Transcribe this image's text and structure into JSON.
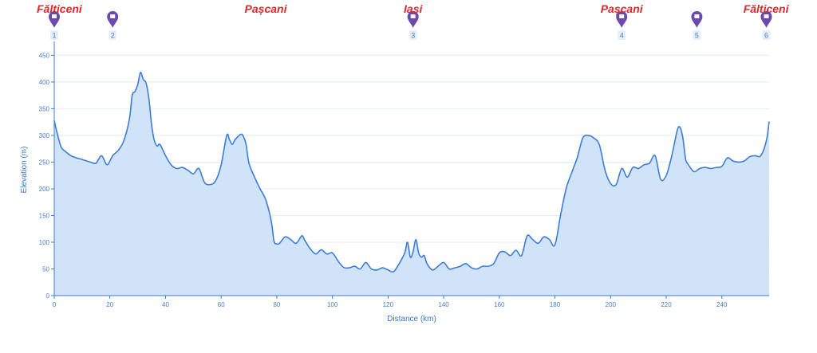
{
  "chart_data": {
    "type": "area",
    "title": "",
    "xlabel": "Distance (km)",
    "ylabel": "Elevation (m)",
    "xlim": [
      0,
      257
    ],
    "ylim": [
      0,
      470
    ],
    "x_ticks": [
      0,
      20,
      40,
      60,
      80,
      100,
      120,
      140,
      160,
      180,
      200,
      220,
      240
    ],
    "y_ticks": [
      0,
      50,
      100,
      150,
      200,
      250,
      300,
      350,
      400,
      450
    ],
    "grid": true,
    "colors": {
      "line": "#3b7dd8",
      "fill": "#cfe1f6",
      "grid": "#e3ebf5",
      "axis": "#3b7dd8",
      "marker": "#6a4ab0",
      "place": "#e0252b"
    },
    "series": [
      {
        "x": [
          0,
          1,
          2.5,
          4,
          6,
          8,
          10,
          13,
          15,
          17,
          19,
          21,
          23,
          25,
          27,
          28,
          29,
          30,
          31,
          32,
          33,
          34,
          35,
          36,
          37,
          38,
          40,
          42,
          44,
          46,
          48,
          50,
          52,
          54,
          56,
          58,
          60,
          62,
          63,
          64,
          65,
          67,
          68,
          69,
          70,
          72,
          74,
          76,
          78,
          79,
          80,
          81,
          83,
          85,
          87,
          89,
          90,
          92,
          94,
          96,
          98,
          100,
          102,
          104,
          106,
          108,
          110,
          112,
          114,
          116,
          118,
          120,
          122,
          124,
          126,
          127,
          128,
          129,
          130,
          131,
          132,
          133,
          134,
          136,
          138,
          140,
          142,
          144,
          146,
          148,
          150,
          152,
          154,
          156,
          158,
          160,
          162,
          164,
          166,
          168,
          170,
          172,
          174,
          176,
          178,
          180,
          182,
          184,
          186,
          188,
          190,
          192,
          194,
          196,
          198,
          200,
          202,
          204,
          206,
          208,
          210,
          212,
          214,
          216,
          218,
          220,
          222,
          224,
          225,
          226,
          227,
          228,
          230,
          232,
          234,
          236,
          238,
          240,
          242,
          244,
          246,
          248,
          250,
          252,
          254,
          256,
          257
        ],
        "values": [
          328,
          305,
          278,
          270,
          262,
          258,
          255,
          250,
          248,
          262,
          245,
          262,
          272,
          290,
          330,
          375,
          382,
          395,
          418,
          405,
          398,
          370,
          320,
          290,
          280,
          283,
          262,
          245,
          238,
          240,
          235,
          228,
          238,
          212,
          208,
          215,
          245,
          300,
          292,
          283,
          292,
          302,
          298,
          282,
          248,
          222,
          200,
          180,
          140,
          102,
          97,
          98,
          110,
          105,
          98,
          112,
          104,
          88,
          78,
          86,
          78,
          80,
          65,
          53,
          52,
          55,
          50,
          62,
          50,
          48,
          52,
          48,
          45,
          60,
          80,
          100,
          72,
          82,
          105,
          80,
          72,
          75,
          60,
          48,
          55,
          62,
          50,
          52,
          55,
          60,
          52,
          50,
          55,
          55,
          60,
          80,
          82,
          75,
          85,
          75,
          112,
          105,
          98,
          110,
          105,
          95,
          150,
          200,
          230,
          258,
          295,
          300,
          295,
          282,
          235,
          210,
          208,
          238,
          222,
          240,
          238,
          245,
          248,
          262,
          218,
          225,
          262,
          310,
          315,
          295,
          255,
          245,
          232,
          238,
          240,
          238,
          240,
          242,
          258,
          252,
          250,
          252,
          260,
          262,
          262,
          290,
          326
        ]
      }
    ],
    "markers": [
      {
        "id": "1",
        "x": 0,
        "place": "Fălticeni"
      },
      {
        "id": "2",
        "x": 21,
        "place": ""
      },
      {
        "id": "3",
        "x": 129,
        "place": "Iași"
      },
      {
        "id": "4",
        "x": 204,
        "place": ""
      },
      {
        "id": "5",
        "x": 231,
        "place": ""
      },
      {
        "id": "6",
        "x": 256,
        "place": ""
      }
    ],
    "place_labels": [
      {
        "text": "Fălticeni",
        "x": 0,
        "anchor": "start"
      },
      {
        "text": "Pașcani",
        "x": 76,
        "anchor": "middle"
      },
      {
        "text": "Iași",
        "x": 129,
        "anchor": "middle"
      },
      {
        "text": "Pașcani",
        "x": 204,
        "anchor": "middle"
      },
      {
        "text": "Fălticeni",
        "x": 256,
        "anchor": "end"
      }
    ]
  }
}
